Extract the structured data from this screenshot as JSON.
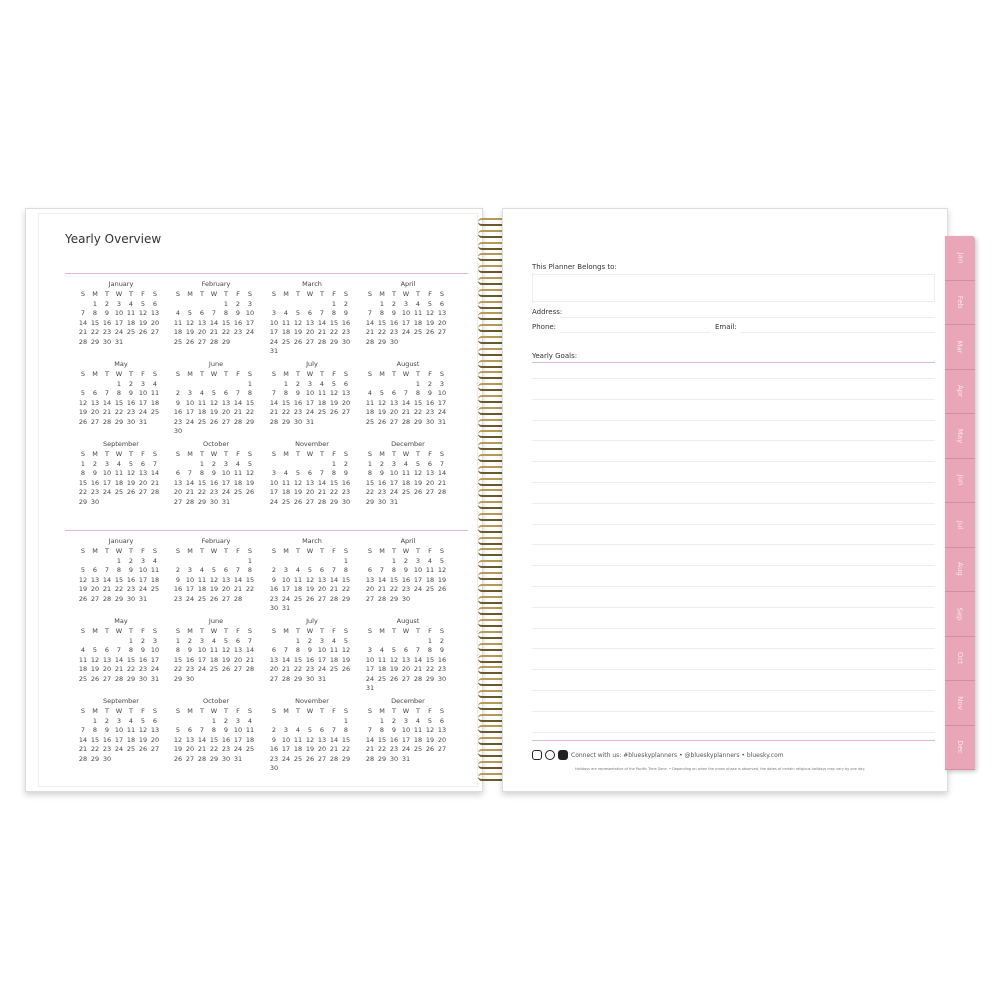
{
  "left_page": {
    "title": "Yearly Overview",
    "weekdays": [
      "S",
      "M",
      "T",
      "W",
      "T",
      "F",
      "S"
    ],
    "calendars": [
      {
        "months": [
          {
            "name": "January",
            "start_weekday": 1,
            "days": 31
          },
          {
            "name": "February",
            "start_weekday": 4,
            "days": 29
          },
          {
            "name": "March",
            "start_weekday": 5,
            "days": 31
          },
          {
            "name": "April",
            "start_weekday": 1,
            "days": 30
          },
          {
            "name": "May",
            "start_weekday": 3,
            "days": 31
          },
          {
            "name": "June",
            "start_weekday": 6,
            "days": 30
          },
          {
            "name": "July",
            "start_weekday": 1,
            "days": 31
          },
          {
            "name": "August",
            "start_weekday": 4,
            "days": 31
          },
          {
            "name": "September",
            "start_weekday": 0,
            "days": 30
          },
          {
            "name": "October",
            "start_weekday": 2,
            "days": 31
          },
          {
            "name": "November",
            "start_weekday": 5,
            "days": 30
          },
          {
            "name": "December",
            "start_weekday": 0,
            "days": 31
          }
        ]
      },
      {
        "months": [
          {
            "name": "January",
            "start_weekday": 3,
            "days": 31
          },
          {
            "name": "February",
            "start_weekday": 6,
            "days": 28
          },
          {
            "name": "March",
            "start_weekday": 6,
            "days": 31
          },
          {
            "name": "April",
            "start_weekday": 2,
            "days": 30
          },
          {
            "name": "May",
            "start_weekday": 4,
            "days": 31
          },
          {
            "name": "June",
            "start_weekday": 0,
            "days": 30
          },
          {
            "name": "July",
            "start_weekday": 2,
            "days": 31
          },
          {
            "name": "August",
            "start_weekday": 5,
            "days": 31
          },
          {
            "name": "September",
            "start_weekday": 1,
            "days": 30
          },
          {
            "name": "October",
            "start_weekday": 3,
            "days": 31
          },
          {
            "name": "November",
            "start_weekday": 6,
            "days": 30
          },
          {
            "name": "December",
            "start_weekday": 1,
            "days": 31
          }
        ]
      }
    ]
  },
  "right_page": {
    "belongs_label": "This Planner Belongs to:",
    "address_label": "Address:",
    "phone_label": "Phone:",
    "email_label": "Email:",
    "goals_label": "Yearly Goals:",
    "social_icons": [
      "instagram-icon",
      "pinterest-icon",
      "facebook-icon"
    ],
    "connect_text": "Connect with us: #blueskyplanners • @blueskyplanners • bluesky.com",
    "disclaimer": "Holidays are representative of the Pacific Time Zone. • Depending on when the moon phase is observed, the dates of certain religious holidays may vary by one day."
  },
  "tabs": [
    "Jan",
    "Feb",
    "Mar",
    "Apr",
    "May",
    "Jun",
    "Jul",
    "Aug",
    "Sep",
    "Oct",
    "Nov",
    "Dec"
  ],
  "colors": {
    "tab_pink": "#e8a6b8",
    "divider_pink": "#e3b9c3",
    "coil_gold": "#b79a58"
  }
}
